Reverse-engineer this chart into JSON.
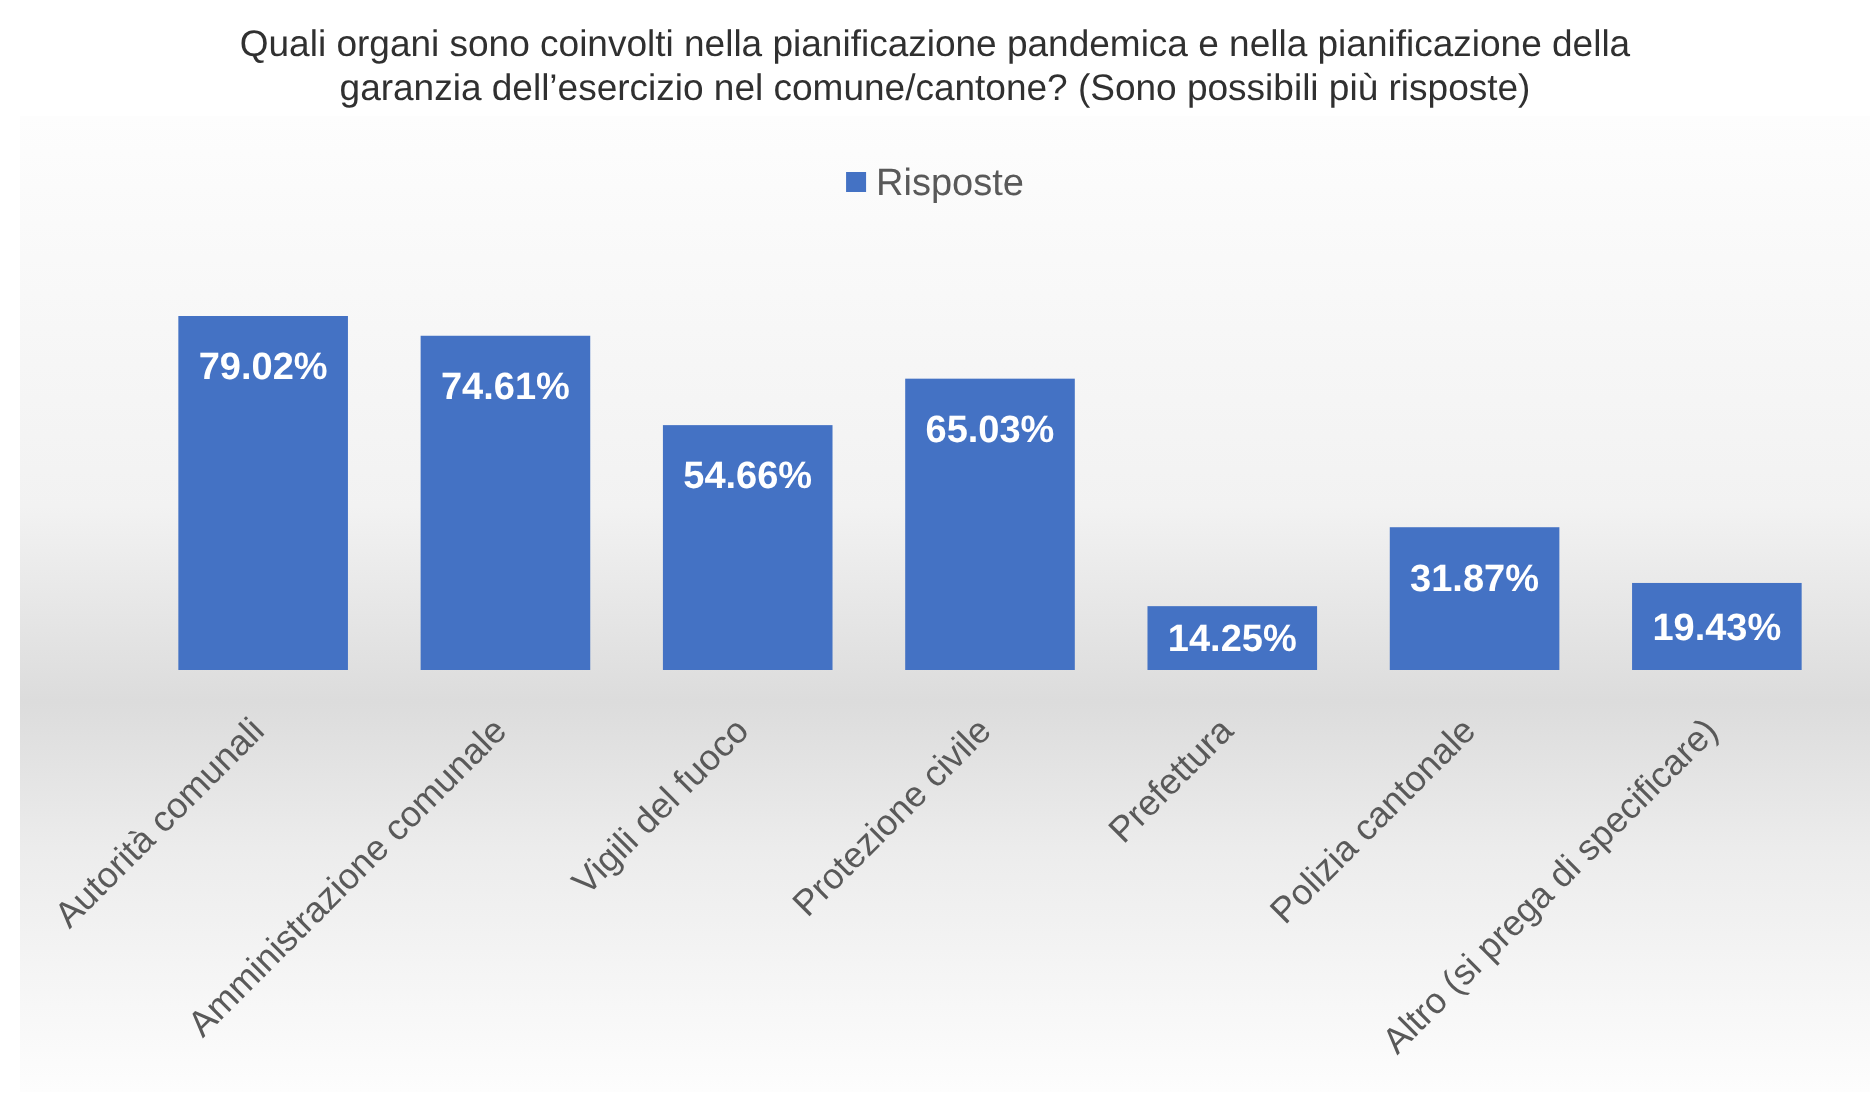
{
  "chart_data": {
    "type": "bar",
    "title": "Quali organi sono coinvolti nella pianificazione pandemica e nella pianificazione della garanzia dell’esercizio nel comune/cantone? (Sono possibili più risposte)",
    "categories": [
      "Autorità comunali",
      "Amministrazione comunale",
      "Vigili del fuoco",
      "Protezione civile",
      "Prefettura",
      "Polizia cantonale",
      "Altro (si prega di specificare)"
    ],
    "series": [
      {
        "name": "Risposte",
        "color": "#4472c4",
        "values": [
          79.02,
          74.61,
          54.66,
          65.03,
          14.25,
          31.87,
          19.43
        ],
        "value_labels": [
          "79.02%",
          "74.61%",
          "54.66%",
          "65.03%",
          "14.25%",
          "31.87%",
          "19.43%"
        ]
      }
    ],
    "legend": "top"
  }
}
